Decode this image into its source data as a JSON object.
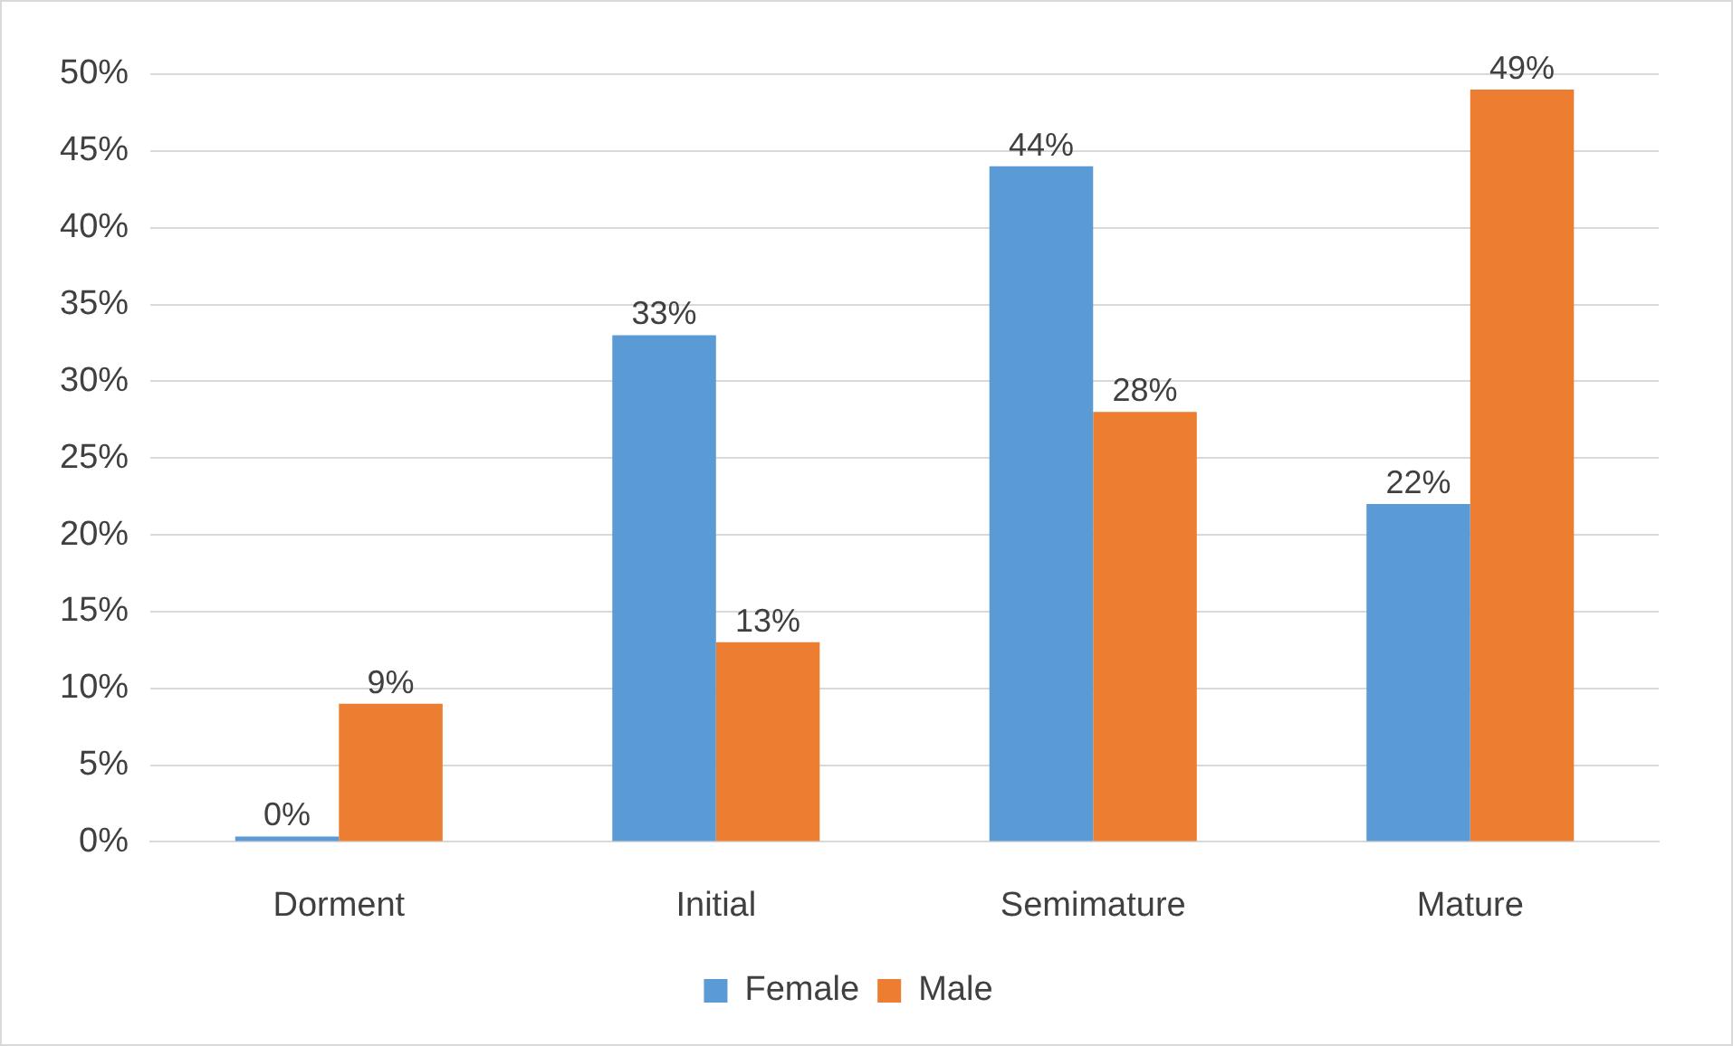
{
  "chart_data": {
    "type": "bar",
    "categories": [
      "Dorment",
      "Initial",
      "Semimature",
      "Mature"
    ],
    "series": [
      {
        "name": "Female",
        "color": "#5b9bd5",
        "values": [
          0,
          33,
          44,
          22
        ],
        "value_labels": [
          "0%",
          "33%",
          "44%",
          "22%"
        ]
      },
      {
        "name": "Male",
        "color": "#ed7d31",
        "values": [
          9,
          13,
          28,
          49
        ],
        "value_labels": [
          "9%",
          "13%",
          "28%",
          "49%"
        ]
      }
    ],
    "ylim": [
      0,
      50
    ],
    "yticks": [
      {
        "value": 0,
        "label": "0%"
      },
      {
        "value": 5,
        "label": "5%"
      },
      {
        "value": 10,
        "label": "10%"
      },
      {
        "value": 15,
        "label": "15%"
      },
      {
        "value": 20,
        "label": "20%"
      },
      {
        "value": 25,
        "label": "25%"
      },
      {
        "value": 30,
        "label": "30%"
      },
      {
        "value": 35,
        "label": "35%"
      },
      {
        "value": 40,
        "label": "40%"
      },
      {
        "value": 45,
        "label": "45%"
      },
      {
        "value": 50,
        "label": "50%"
      }
    ],
    "grid": "y",
    "legend": "bottom"
  }
}
